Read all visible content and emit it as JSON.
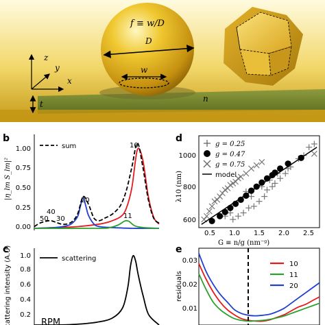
{
  "panel_a": {
    "f_def": "f ≡ w/D",
    "D": "D",
    "w": "w",
    "t": "t",
    "n": "n",
    "axis_x": "x",
    "axis_y": "y",
    "axis_z": "z"
  },
  "panel_b": {
    "label": "b",
    "ylabel": "|η_lm S_lm|²",
    "yticks": [
      "0.00",
      "0.25",
      "0.50",
      "0.75",
      "1.00"
    ],
    "legend": "sum",
    "peak_labels": [
      "10",
      "20",
      "11",
      "40",
      "50",
      "30"
    ]
  },
  "panel_c": {
    "label": "c",
    "ylabel": "Scattering intensity (A.U)",
    "yticks": [
      "0.2",
      "0.4",
      "0.6",
      "0.8",
      "1.0"
    ],
    "legend": "scattering",
    "partial_text": "RPM"
  },
  "panel_d": {
    "label": "d",
    "ylabel": "λ10 (nm)",
    "xlabel": "G ≡ n/g (nm⁻ᵍ)",
    "yticks": [
      "600",
      "800",
      "1000"
    ],
    "xticks": [
      "0.5",
      "1.0",
      "1.5",
      "2.0",
      "2.5"
    ],
    "legend": [
      "g = 0.25",
      "g = 0.47",
      "g = 0.75",
      "model"
    ]
  },
  "panel_e": {
    "label": "e",
    "ylabel": "residuals",
    "yticks": [
      "0.01",
      "0.02",
      "0.03"
    ],
    "legend": [
      "10",
      "11",
      "20"
    ]
  },
  "colors": {
    "gold": "#d4a017",
    "red": "#e41a1c",
    "green": "#2ca02c",
    "blue": "#1f3fd0",
    "black": "#000000"
  },
  "chart_data": [
    {
      "type": "line",
      "panel": "b",
      "ylabel": "|η_lm S_lm|²",
      "ylim": [
        0,
        1.1
      ],
      "series": [
        {
          "name": "sum",
          "style": "dashed",
          "color": "#000000",
          "x": [
            0,
            10,
            20,
            30,
            40,
            50,
            60,
            70,
            80,
            90,
            100,
            110,
            120,
            130,
            140,
            150,
            160,
            170,
            180,
            190,
            200,
            210,
            220,
            230
          ],
          "y": [
            0.02,
            0.06,
            0.08,
            0.09,
            0.07,
            0.05,
            0.05,
            0.08,
            0.17,
            0.37,
            0.28,
            0.12,
            0.09,
            0.12,
            0.15,
            0.2,
            0.28,
            0.45,
            0.72,
            1.0,
            0.72,
            0.34,
            0.12,
            0.06
          ]
        },
        {
          "color": "#e41a1c",
          "x": [
            0,
            40,
            80,
            120,
            140,
            160,
            170,
            180,
            190,
            200,
            210,
            220,
            230
          ],
          "y": [
            0.0,
            0.01,
            0.02,
            0.05,
            0.08,
            0.14,
            0.24,
            0.48,
            0.92,
            0.8,
            0.38,
            0.13,
            0.05
          ]
        },
        {
          "color": "#1f3fd0",
          "x": [
            0,
            40,
            60,
            70,
            80,
            85,
            90,
            95,
            100,
            110,
            120,
            140,
            180,
            230
          ],
          "y": [
            0.0,
            0.01,
            0.03,
            0.06,
            0.14,
            0.26,
            0.36,
            0.26,
            0.15,
            0.05,
            0.02,
            0.01,
            0.0,
            0.0
          ]
        },
        {
          "color": "#2ca02c",
          "x": [
            0,
            120,
            140,
            155,
            165,
            170,
            175,
            185,
            200,
            230
          ],
          "y": [
            0.0,
            0.0,
            0.01,
            0.04,
            0.08,
            0.09,
            0.08,
            0.03,
            0.01,
            0.0
          ]
        }
      ]
    },
    {
      "type": "line",
      "panel": "c",
      "ylabel": "Scattering intensity (A.U)",
      "ylim": [
        0,
        1.05
      ],
      "series": [
        {
          "name": "scattering",
          "color": "#000000",
          "x": [
            0,
            40,
            80,
            120,
            150,
            170,
            180,
            185,
            190,
            195,
            200,
            210,
            220,
            240
          ],
          "y": [
            0.0,
            0.0,
            0.01,
            0.04,
            0.1,
            0.25,
            0.55,
            0.85,
            1.0,
            0.92,
            0.72,
            0.4,
            0.15,
            0.0
          ]
        }
      ]
    },
    {
      "type": "scatter",
      "panel": "d",
      "xlabel": "G ≡ n/g (nm⁻ᵍ)",
      "ylabel": "λ10 (nm)",
      "xlim": [
        0.3,
        2.6
      ],
      "ylim": [
        570,
        1130
      ],
      "series": [
        {
          "name": "g = 0.25",
          "marker": "plus",
          "x": [
            0.95,
            1.05,
            1.15,
            1.25,
            1.35,
            1.45,
            1.55,
            1.6,
            1.7,
            1.75,
            1.85,
            1.95,
            2.05,
            2.2,
            2.4,
            2.5,
            0.8,
            0.9,
            1.1,
            1.2,
            1.3,
            1.5,
            1.65,
            1.8,
            2.0,
            2.3
          ],
          "y": [
            620,
            640,
            660,
            690,
            700,
            730,
            760,
            800,
            820,
            840,
            870,
            900,
            940,
            990,
            1060,
            1080,
            640,
            660,
            740,
            790,
            760,
            820,
            860,
            900,
            930,
            1010
          ]
        },
        {
          "name": "g = 0.47",
          "marker": "circle",
          "x": [
            0.55,
            0.7,
            0.8,
            0.9,
            1.0,
            1.1,
            1.2,
            1.3,
            1.4,
            1.5,
            1.6,
            1.7,
            1.75,
            1.85,
            2.0,
            2.25
          ],
          "y": [
            610,
            640,
            665,
            690,
            715,
            740,
            765,
            795,
            820,
            845,
            870,
            890,
            905,
            930,
            960,
            995
          ]
        },
        {
          "name": "g = 0.75",
          "marker": "x",
          "x": [
            0.4,
            0.45,
            0.5,
            0.55,
            0.6,
            0.65,
            0.7,
            0.75,
            0.8,
            0.85,
            0.9,
            0.95,
            1.0,
            1.05,
            1.1,
            1.2,
            1.3,
            1.4,
            1.5,
            2.5
          ],
          "y": [
            620,
            640,
            670,
            700,
            730,
            740,
            760,
            780,
            800,
            810,
            830,
            840,
            850,
            870,
            880,
            900,
            930,
            950,
            970,
            1020
          ]
        },
        {
          "name": "model",
          "style": "line",
          "x": [
            0.35,
            2.55
          ],
          "y": [
            590,
            1060
          ]
        }
      ]
    },
    {
      "type": "line",
      "panel": "e",
      "ylabel": "residuals",
      "series": [
        {
          "name": "10",
          "color": "#e41a1c",
          "x": [
            0,
            10,
            20,
            30,
            40,
            50,
            60,
            70,
            80,
            90,
            100,
            110,
            120,
            130,
            140,
            150,
            160,
            170
          ],
          "y": [
            0.028,
            0.022,
            0.017,
            0.013,
            0.01,
            0.008,
            0.0065,
            0.0058,
            0.0055,
            0.0055,
            0.006,
            0.007,
            0.008,
            0.0095,
            0.011,
            0.012,
            0.0135,
            0.015
          ]
        },
        {
          "name": "11",
          "color": "#2ca02c",
          "x": [
            0,
            10,
            20,
            30,
            40,
            50,
            60,
            70,
            80,
            90,
            100,
            110,
            120,
            130,
            140,
            150,
            160,
            170
          ],
          "y": [
            0.024,
            0.018,
            0.013,
            0.01,
            0.008,
            0.0065,
            0.0058,
            0.0055,
            0.0056,
            0.0058,
            0.0062,
            0.0068,
            0.0075,
            0.0085,
            0.0095,
            0.0105,
            0.0115,
            0.0125
          ]
        },
        {
          "name": "20",
          "color": "#1f3fd0",
          "x": [
            0,
            10,
            20,
            30,
            40,
            50,
            60,
            70,
            80,
            90,
            100,
            110,
            120,
            130,
            140,
            150,
            160,
            170
          ],
          "y": [
            0.032,
            0.025,
            0.02,
            0.016,
            0.013,
            0.01,
            0.0085,
            0.0078,
            0.0076,
            0.0078,
            0.0082,
            0.0092,
            0.0105,
            0.0125,
            0.0145,
            0.0165,
            0.0185,
            0.0205
          ]
        }
      ]
    }
  ]
}
